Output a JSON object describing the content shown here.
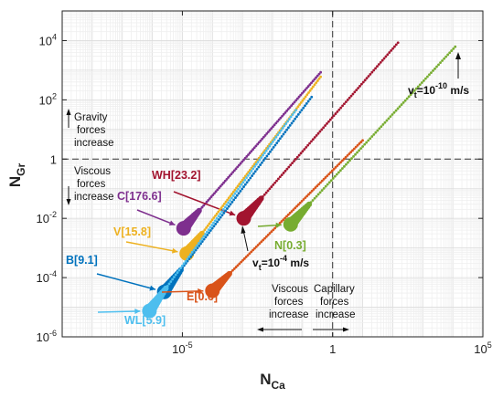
{
  "chart_data": {
    "type": "scatter",
    "xlabel": "N",
    "xlabel_sub": "Ca",
    "ylabel": "N",
    "ylabel_sub": "Gr",
    "x_scale": "log",
    "y_scale": "log",
    "xlim": [
      1e-09,
      100000.0
    ],
    "ylim": [
      1e-06,
      100000.0
    ],
    "x_ticks": [
      {
        "value": 1e-05,
        "base": "10",
        "exp": "-5"
      },
      {
        "value": 1,
        "base": "1",
        "exp": ""
      },
      {
        "value": 100000.0,
        "base": "10",
        "exp": "5"
      }
    ],
    "y_ticks": [
      {
        "value": 1e-06,
        "base": "10",
        "exp": "-6"
      },
      {
        "value": 0.0001,
        "base": "10",
        "exp": "-4"
      },
      {
        "value": 0.01,
        "base": "10",
        "exp": "-2"
      },
      {
        "value": 1,
        "base": "1",
        "exp": ""
      },
      {
        "value": 100.0,
        "base": "10",
        "exp": "2"
      },
      {
        "value": 10000.0,
        "base": "10",
        "exp": "4"
      }
    ],
    "grid": true,
    "reference_lines": {
      "x": 1,
      "y": 1
    },
    "series": [
      {
        "name": "C[176.6]",
        "color": "#7e2f8e",
        "start": [
          1.1e-05,
          0.0046
        ],
        "end": [
          0.4,
          850
        ]
      },
      {
        "name": "WH[23.2]",
        "color": "#a2142f",
        "start": [
          0.0011,
          0.01
        ],
        "end": [
          150,
          8500
        ]
      },
      {
        "name": "V[15.8]",
        "color": "#edb120",
        "start": [
          1.4e-05,
          0.00065
        ],
        "end": [
          0.4,
          600
        ]
      },
      {
        "name": "B[9.1]",
        "color": "#0072bd",
        "start": [
          2.5e-06,
          3.3e-05
        ],
        "end": [
          0.2,
          125
        ]
      },
      {
        "name": "WL[5.9]",
        "color": "#4dbeee",
        "start": [
          8e-07,
          7.5e-06
        ],
        "end": [
          0.06,
          45
        ]
      },
      {
        "name": "E[0.6]",
        "color": "#d95319",
        "start": [
          0.0001,
          3.6e-05
        ],
        "end": [
          10,
          4.3
        ]
      },
      {
        "name": "N[0.3]",
        "color": "#77ac30",
        "start": [
          0.04,
          0.0063
        ],
        "end": [
          12000,
          6200
        ]
      }
    ]
  },
  "annotations": {
    "vt_high_base": "v",
    "vt_high_sub": "t",
    "vt_high_mid": "=10",
    "vt_high_exp": "-10",
    "vt_high_unit": " m/s",
    "vt_low_base": "v",
    "vt_low_sub": "t",
    "vt_low_mid": "=10",
    "vt_low_exp": "-4",
    "vt_low_unit": " m/s",
    "gravity_lines": [
      "Gravity",
      "forces",
      "increase"
    ],
    "viscous_left_lines": [
      "Viscous",
      "forces",
      "increase"
    ],
    "viscous_bottom_lines": [
      "Viscous",
      "forces",
      "increase"
    ],
    "capillary_lines": [
      "Capillary",
      "forces",
      "increase"
    ]
  }
}
